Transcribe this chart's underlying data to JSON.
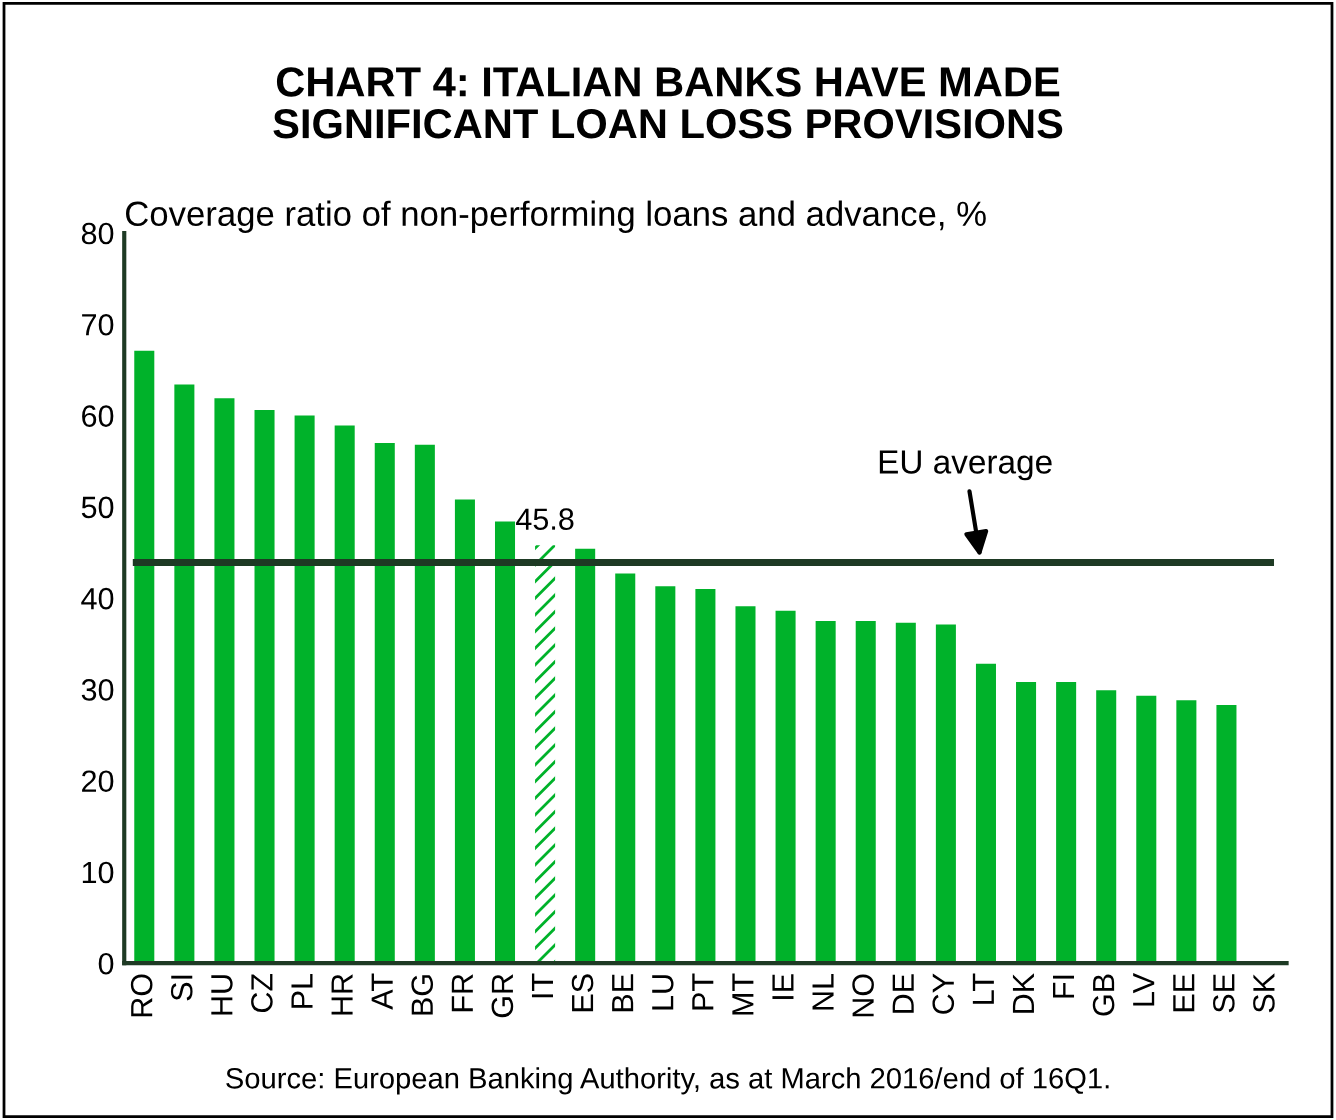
{
  "chart_data": {
    "type": "bar",
    "title": "CHART 4: ITALIAN BANKS HAVE MADE\nSIGNIFICANT LOAN LOSS PROVISIONS",
    "subtitle": "Coverage ratio of non-performing loans and advance, %",
    "categories": [
      "RO",
      "SI",
      "HU",
      "CZ",
      "PL",
      "HR",
      "AT",
      "BG",
      "FR",
      "GR",
      "IT",
      "ES",
      "BE",
      "LU",
      "PT",
      "MT",
      "IE",
      "NL",
      "NO",
      "DE",
      "CY",
      "LT",
      "DK",
      "FI",
      "GB",
      "LV",
      "EE",
      "SE",
      "SK"
    ],
    "values": [
      67.1,
      63.4,
      61.9,
      60.6,
      60.0,
      58.9,
      57.0,
      56.8,
      50.8,
      48.4,
      45.8,
      45.4,
      42.7,
      41.3,
      41.0,
      39.1,
      38.6,
      37.5,
      37.5,
      37.3,
      37.1,
      32.8,
      30.8,
      30.8,
      29.9,
      29.3,
      28.8,
      28.3,
      null
    ],
    "value_labels": [
      null,
      null,
      null,
      null,
      null,
      null,
      null,
      null,
      null,
      null,
      "45.8",
      null,
      null,
      null,
      null,
      null,
      null,
      null,
      null,
      null,
      null,
      null,
      null,
      null,
      null,
      null,
      null,
      null,
      null
    ],
    "color": "#00b22a",
    "ylim": [
      0,
      80
    ],
    "yticks": [
      0,
      10,
      20,
      30,
      40,
      50,
      60,
      70,
      80
    ],
    "grid": false,
    "legend": false,
    "ref_lines": [
      {
        "axis": "y",
        "value": 43.9,
        "label": "EU average",
        "color": "#1e3a24"
      }
    ],
    "annotations": [
      "Source: European Banking Authority, as at March 2016/end of 16Q1."
    ]
  }
}
